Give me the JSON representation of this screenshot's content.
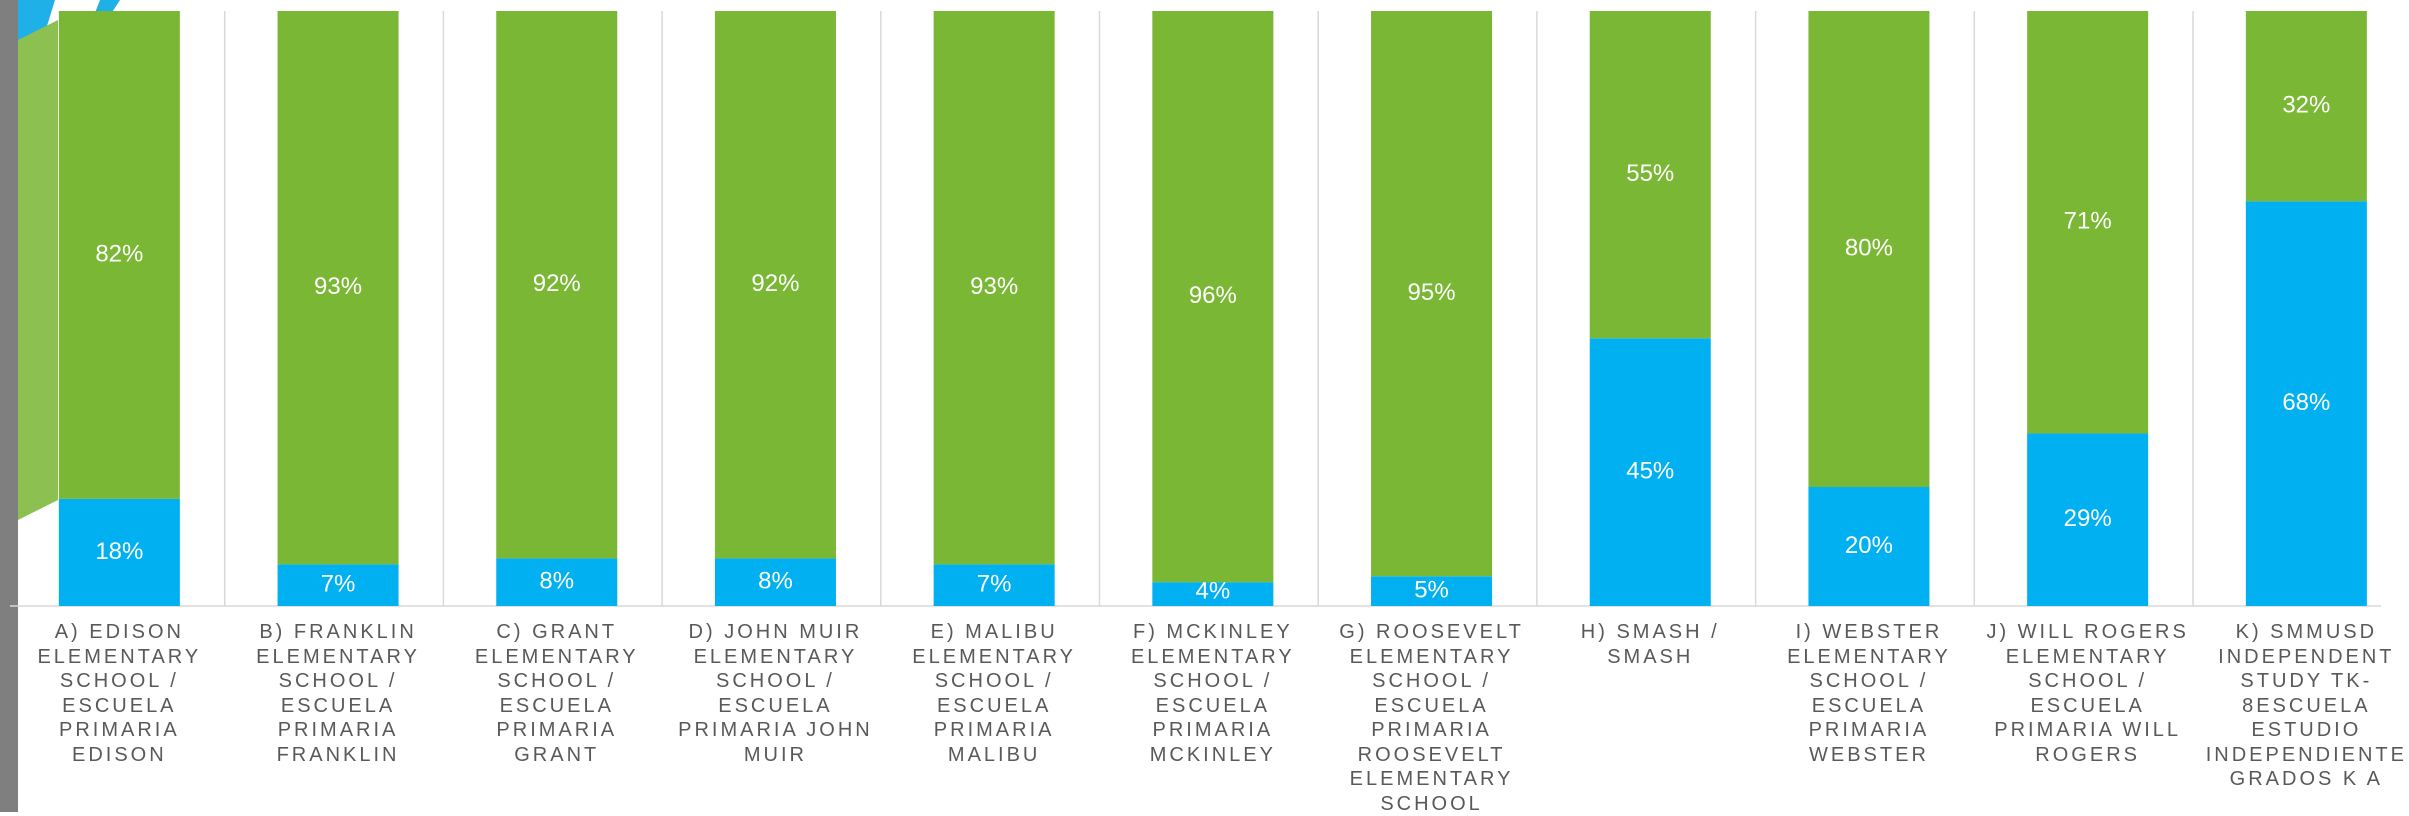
{
  "chart_data": {
    "type": "bar",
    "stacked": true,
    "categories": [
      "A) EDISON ELEMENTARY SCHOOL / ESCUELA PRIMARIA EDISON",
      "B) FRANKLIN ELEMENTARY SCHOOL / ESCUELA PRIMARIA FRANKLIN",
      "C) GRANT ELEMENTARY SCHOOL / ESCUELA PRIMARIA GRANT",
      "D) JOHN MUIR ELEMENTARY SCHOOL / ESCUELA PRIMARIA JOHN MUIR",
      "E) MALIBU ELEMENTARY SCHOOL / ESCUELA PRIMARIA MALIBU",
      "F) MCKINLEY ELEMENTARY SCHOOL / ESCUELA PRIMARIA MCKINLEY",
      "G) ROOSEVELT ELEMENTARY SCHOOL / ESCUELA PRIMARIA ROOSEVELT ELEMENTARY SCHOOL",
      "H) SMASH / SMASH",
      "I) WEBSTER ELEMENTARY SCHOOL / ESCUELA PRIMARIA WEBSTER",
      "J) WILL ROGERS ELEMENTARY SCHOOL / ESCUELA PRIMARIA WILL ROGERS",
      "K) SMMUSD INDEPENDENT STUDY TK-8ESCUELA ESTUDIO INDEPENDIENTE GRADOS K A"
    ],
    "series": [
      {
        "color": "#00b0f0",
        "values": [
          18,
          7,
          8,
          8,
          7,
          4,
          5,
          45,
          20,
          29,
          68
        ],
        "value_labels": [
          "18%",
          "7%",
          "8%",
          "8%",
          "7%",
          "4%",
          "5%",
          "45%",
          "20%",
          "29%",
          "68%"
        ]
      },
      {
        "color": "#7ab734",
        "values": [
          82,
          93,
          92,
          92,
          93,
          96,
          95,
          55,
          80,
          71,
          32
        ],
        "value_labels": [
          "82%",
          "93%",
          "92%",
          "92%",
          "93%",
          "96%",
          "95%",
          "55%",
          "80%",
          "71%",
          "32%"
        ]
      }
    ],
    "ylim": [
      0,
      100
    ]
  }
}
